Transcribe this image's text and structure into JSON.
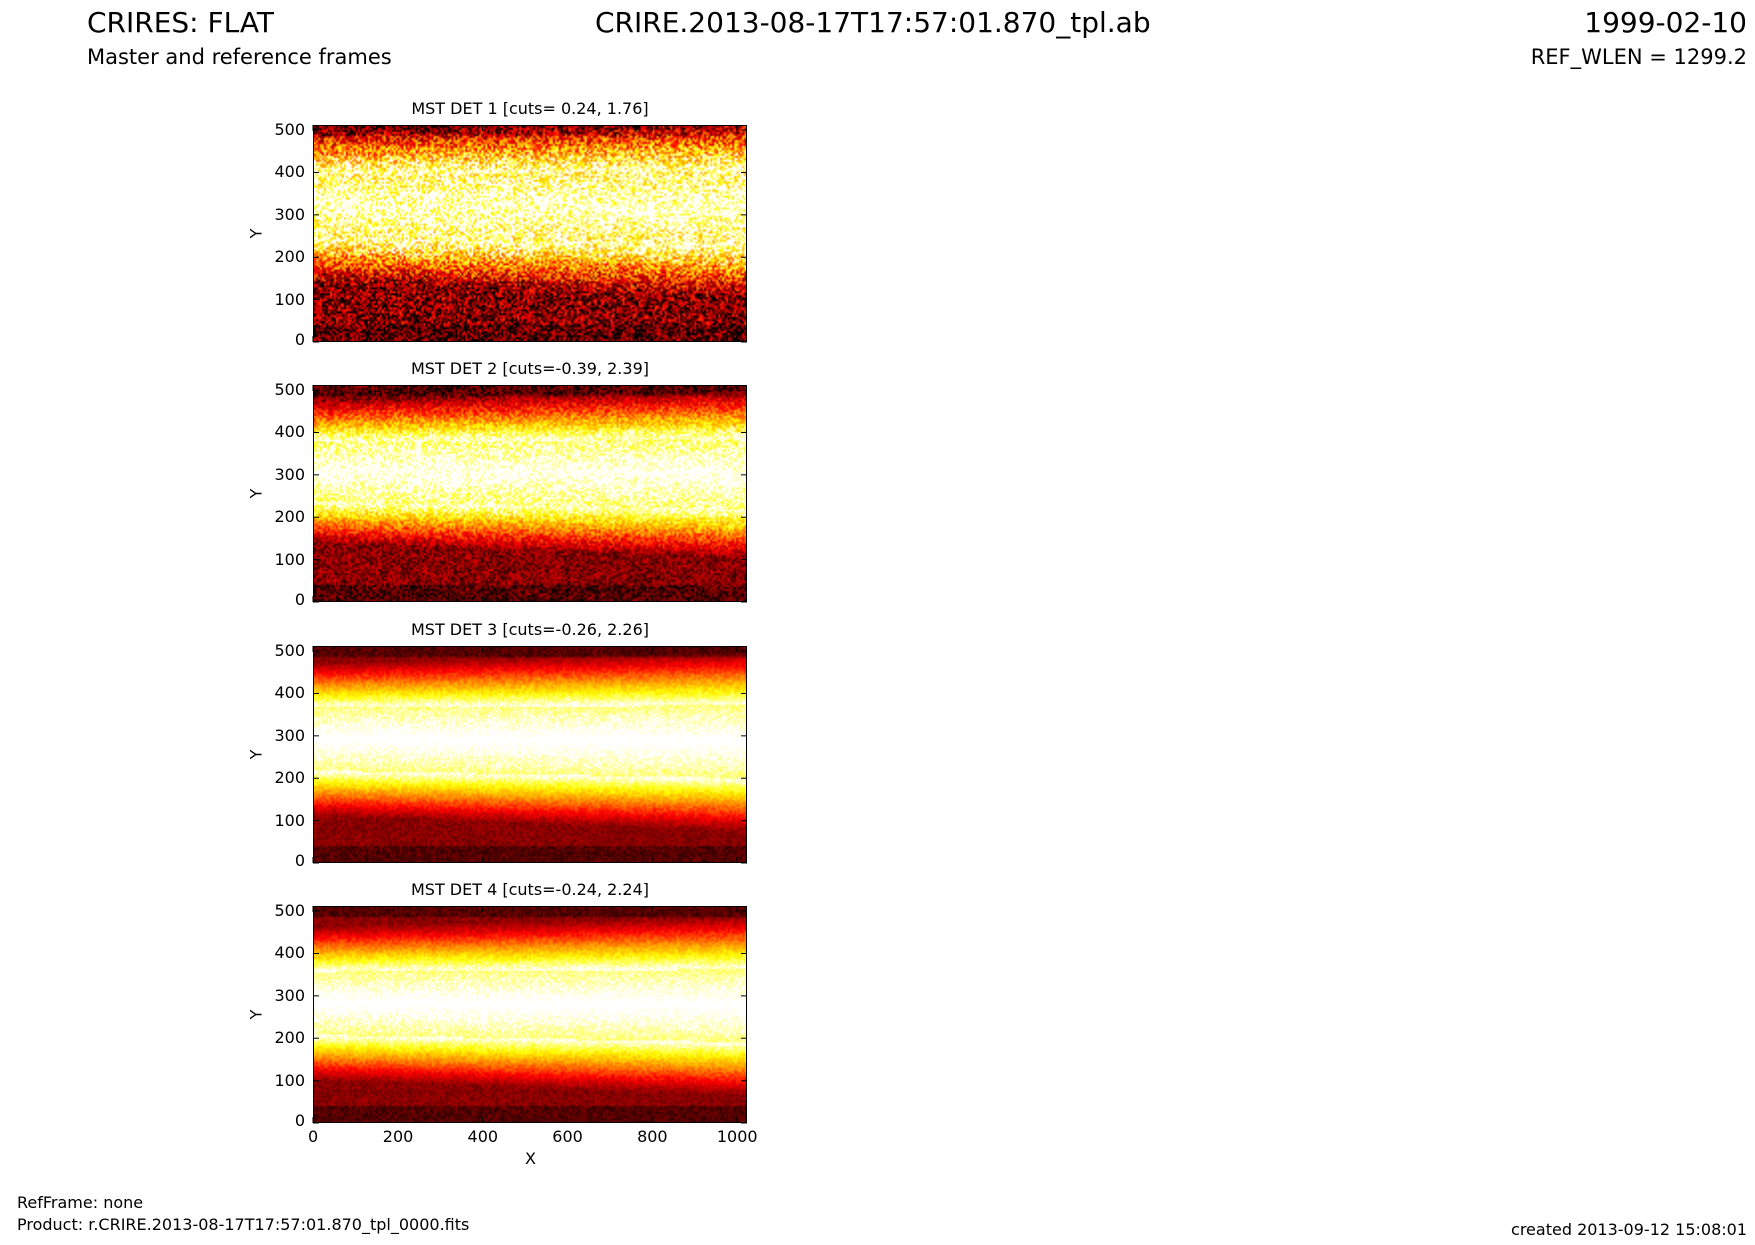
{
  "header": {
    "instrument_title": "CRIRES: FLAT",
    "file_title": "CRIRE.2013-08-17T17:57:01.870_tpl.ab",
    "date": "1999-02-10",
    "subtitle": "Master and reference frames",
    "ref_wlen": "REF_WLEN = 1299.2"
  },
  "footer": {
    "ref_frame": "RefFrame: none",
    "product": "Product: r.CRIRE.2013-08-17T17:57:01.870_tpl_0000.fits",
    "created": "created 2013-09-12 15:08:01"
  },
  "colors": {
    "colormap": [
      "#000000",
      "#8b0000",
      "#ff0000",
      "#ff8c00",
      "#ffff00",
      "#ffffff"
    ]
  },
  "chart_data": [
    {
      "type": "heatmap",
      "title": "MST DET 1 [cuts= 0.24, 1.76]",
      "ylabel": "Y",
      "xlabel": "",
      "xlim": [
        0,
        1024
      ],
      "ylim": [
        0,
        512
      ],
      "xticks": [],
      "yticks": [
        "0",
        "100",
        "200",
        "300",
        "400",
        "500"
      ],
      "cuts": [
        0.24,
        1.76
      ],
      "bright_band_y": [
        250,
        400
      ],
      "noise": "high"
    },
    {
      "type": "heatmap",
      "title": "MST DET 2 [cuts=-0.39, 2.39]",
      "ylabel": "Y",
      "xlabel": "",
      "xlim": [
        0,
        1024
      ],
      "ylim": [
        0,
        512
      ],
      "xticks": [],
      "yticks": [
        "0",
        "100",
        "200",
        "300",
        "400",
        "500"
      ],
      "cuts": [
        -0.39,
        2.39
      ],
      "bright_band_y": [
        240,
        380
      ],
      "noise": "medium"
    },
    {
      "type": "heatmap",
      "title": "MST DET 3 [cuts=-0.26, 2.26]",
      "ylabel": "Y",
      "xlabel": "",
      "xlim": [
        0,
        1024
      ],
      "ylim": [
        0,
        512
      ],
      "xticks": [],
      "yticks": [
        "0",
        "100",
        "200",
        "300",
        "400",
        "500"
      ],
      "cuts": [
        -0.26,
        2.26
      ],
      "bright_band_y": [
        220,
        370
      ],
      "noise": "low"
    },
    {
      "type": "heatmap",
      "title": "MST DET 4 [cuts=-0.24, 2.24]",
      "ylabel": "Y",
      "xlabel": "X",
      "xlim": [
        0,
        1024
      ],
      "ylim": [
        0,
        512
      ],
      "xticks": [
        "0",
        "200",
        "400",
        "600",
        "800",
        "1000"
      ],
      "yticks": [
        "0",
        "100",
        "200",
        "300",
        "400",
        "500"
      ],
      "cuts": [
        -0.24,
        2.24
      ],
      "bright_band_y": [
        210,
        360
      ],
      "noise": "low"
    }
  ]
}
